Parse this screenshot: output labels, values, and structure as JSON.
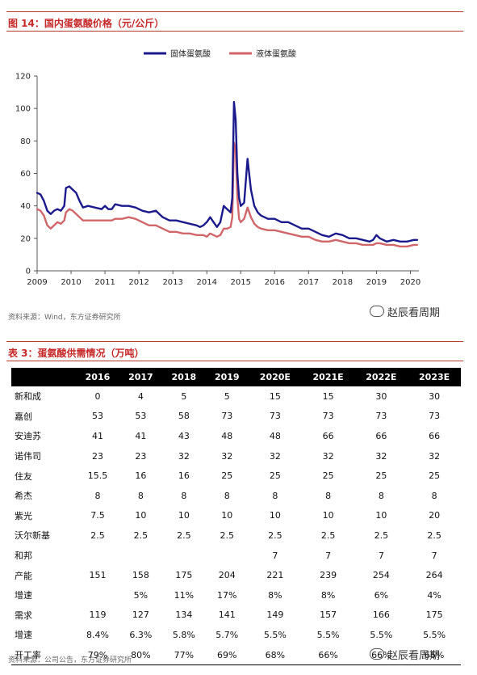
{
  "figure": {
    "caption": "图 14：国内蛋氨酸价格（元/公斤）",
    "source": "资料来源：Wind，东方证券研究所",
    "watermark": "赵辰看周期"
  },
  "chart_data": {
    "type": "line",
    "title": "",
    "xlabel": "",
    "ylabel": "",
    "xlim": [
      2009,
      2020.25
    ],
    "ylim": [
      0,
      120
    ],
    "yticks": [
      0,
      20,
      40,
      60,
      80,
      100,
      120
    ],
    "xticks": [
      2009,
      2010,
      2011,
      2012,
      2013,
      2014,
      2015,
      2016,
      2017,
      2018,
      2019,
      2020
    ],
    "xtick_labels": [
      "2009",
      "2010",
      "2011",
      "2012",
      "2013",
      "2014",
      "2015",
      "2016",
      "2017",
      "2018",
      "2019",
      "2020"
    ],
    "legend": "top-center",
    "grid": false,
    "series": [
      {
        "name": "固体蛋氨酸",
        "color": "#1a1a8c",
        "x": [
          2009.0,
          2009.1,
          2009.2,
          2009.3,
          2009.4,
          2009.5,
          2009.6,
          2009.7,
          2009.8,
          2009.85,
          2009.95,
          2010.05,
          2010.15,
          2010.25,
          2010.35,
          2010.5,
          2010.7,
          2010.9,
          2011.0,
          2011.1,
          2011.2,
          2011.3,
          2011.5,
          2011.7,
          2011.9,
          2012.1,
          2012.3,
          2012.5,
          2012.7,
          2012.9,
          2013.1,
          2013.3,
          2013.5,
          2013.7,
          2013.8,
          2013.9,
          2014.0,
          2014.1,
          2014.2,
          2014.3,
          2014.4,
          2014.5,
          2014.6,
          2014.7,
          2014.75,
          2014.8,
          2014.85,
          2014.9,
          2014.95,
          2015.0,
          2015.1,
          2015.2,
          2015.3,
          2015.4,
          2015.5,
          2015.6,
          2015.8,
          2016.0,
          2016.2,
          2016.4,
          2016.6,
          2016.8,
          2017.0,
          2017.2,
          2017.4,
          2017.6,
          2017.8,
          2018.0,
          2018.2,
          2018.4,
          2018.6,
          2018.8,
          2018.9,
          2019.0,
          2019.1,
          2019.3,
          2019.5,
          2019.7,
          2019.9,
          2020.1,
          2020.2
        ],
        "values": [
          48,
          47,
          43,
          37,
          35,
          37,
          38,
          37,
          40,
          51,
          52,
          50,
          48,
          43,
          39,
          40,
          39,
          38,
          40,
          38,
          38,
          41,
          40,
          40,
          39,
          37,
          36,
          37,
          33,
          31,
          31,
          30,
          29,
          28,
          27,
          28,
          30,
          33,
          30,
          27,
          30,
          40,
          38,
          36,
          45,
          104,
          93,
          60,
          45,
          40,
          42,
          69,
          50,
          40,
          36,
          34,
          32,
          32,
          30,
          30,
          28,
          26,
          26,
          24,
          22,
          21,
          23,
          22,
          20,
          20,
          19,
          18,
          19,
          22,
          20,
          18,
          19,
          18,
          18,
          19,
          19
        ]
      },
      {
        "name": "液体蛋氨酸",
        "color": "#d0666a",
        "x": [
          2009.0,
          2009.1,
          2009.2,
          2009.3,
          2009.4,
          2009.5,
          2009.6,
          2009.7,
          2009.8,
          2009.85,
          2009.95,
          2010.05,
          2010.15,
          2010.25,
          2010.35,
          2010.5,
          2010.7,
          2010.9,
          2011.0,
          2011.1,
          2011.2,
          2011.3,
          2011.5,
          2011.7,
          2011.9,
          2012.1,
          2012.3,
          2012.5,
          2012.7,
          2012.9,
          2013.1,
          2013.3,
          2013.5,
          2013.7,
          2013.8,
          2013.9,
          2014.0,
          2014.1,
          2014.2,
          2014.3,
          2014.4,
          2014.5,
          2014.6,
          2014.7,
          2014.75,
          2014.8,
          2014.85,
          2014.9,
          2014.95,
          2015.0,
          2015.1,
          2015.2,
          2015.3,
          2015.4,
          2015.5,
          2015.6,
          2015.8,
          2016.0,
          2016.2,
          2016.4,
          2016.6,
          2016.8,
          2017.0,
          2017.2,
          2017.4,
          2017.6,
          2017.8,
          2018.0,
          2018.2,
          2018.4,
          2018.6,
          2018.8,
          2018.9,
          2019.0,
          2019.1,
          2019.3,
          2019.5,
          2019.7,
          2019.9,
          2020.1,
          2020.2
        ],
        "values": [
          38,
          37,
          34,
          28,
          26,
          28,
          30,
          29,
          31,
          36,
          38,
          37,
          35,
          33,
          31,
          31,
          31,
          31,
          31,
          31,
          31,
          32,
          32,
          33,
          32,
          30,
          28,
          28,
          26,
          24,
          24,
          23,
          23,
          22,
          22,
          22,
          21,
          23,
          22,
          21,
          22,
          26,
          26,
          27,
          33,
          79,
          75,
          45,
          32,
          30,
          32,
          39,
          33,
          29,
          27,
          26,
          25,
          25,
          24,
          23,
          22,
          21,
          21,
          19,
          18,
          18,
          19,
          18,
          17,
          17,
          16,
          16,
          16,
          17,
          17,
          16,
          16,
          15,
          15,
          16,
          16
        ]
      }
    ]
  },
  "table": {
    "caption": "表 3：蛋氨酸供需情况（万吨）",
    "headers": [
      "",
      "2016",
      "2017",
      "2018",
      "2019",
      "2020E",
      "2021E",
      "2022E",
      "2023E"
    ],
    "rows": [
      [
        "新和成",
        "0",
        "4",
        "5",
        "5",
        "15",
        "15",
        "30",
        "30"
      ],
      [
        "嘉创",
        "53",
        "53",
        "58",
        "73",
        "73",
        "73",
        "73",
        "73"
      ],
      [
        "安迪苏",
        "41",
        "41",
        "43",
        "48",
        "48",
        "66",
        "66",
        "66"
      ],
      [
        "诺伟司",
        "23",
        "23",
        "32",
        "32",
        "32",
        "32",
        "32",
        "32"
      ],
      [
        "住友",
        "15.5",
        "16",
        "16",
        "25",
        "25",
        "25",
        "25",
        "25"
      ],
      [
        "希杰",
        "8",
        "8",
        "8",
        "8",
        "8",
        "8",
        "8",
        "8"
      ],
      [
        "紫光",
        "7.5",
        "10",
        "10",
        "10",
        "10",
        "10",
        "10",
        "20"
      ],
      [
        "沃尔新基",
        "2.5",
        "2.5",
        "2.5",
        "2.5",
        "2.5",
        "2.5",
        "2.5",
        "2.5"
      ],
      [
        "和邦",
        "",
        "",
        "",
        "",
        "7",
        "7",
        "7",
        "7"
      ],
      [
        "产能",
        "151",
        "158",
        "175",
        "204",
        "221",
        "239",
        "254",
        "264"
      ],
      [
        "增速",
        "",
        "5%",
        "11%",
        "17%",
        "8%",
        "8%",
        "6%",
        "4%"
      ],
      [
        "需求",
        "119",
        "127",
        "134",
        "141",
        "149",
        "157",
        "166",
        "175"
      ],
      [
        "增速",
        "8.4%",
        "6.3%",
        "5.8%",
        "5.7%",
        "5.5%",
        "5.5%",
        "5.5%",
        "5.5%"
      ],
      [
        "开工率",
        "79%",
        "80%",
        "77%",
        "69%",
        "68%",
        "66%",
        "66%",
        "66%"
      ]
    ],
    "source": "资料来源：公司公告，东方证券研究所",
    "watermark": "赵辰看周期"
  }
}
